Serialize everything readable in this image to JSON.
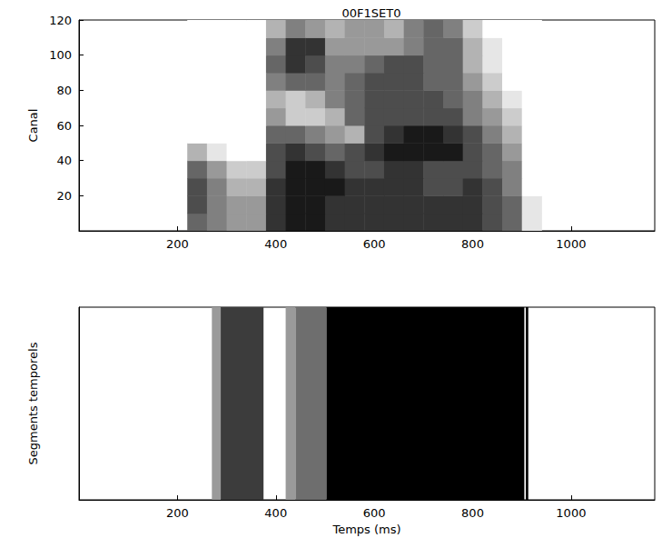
{
  "chart_data": [
    {
      "type": "heatmap",
      "title": "00F1SET0",
      "ylabel": "Canal",
      "xlim": [
        0,
        1170
      ],
      "xticks": [
        200,
        400,
        600,
        800,
        1000
      ],
      "ylim": [
        0,
        120
      ],
      "yticks": [
        20,
        40,
        60,
        80,
        100,
        120
      ],
      "x_edges": [
        220,
        260,
        300,
        340,
        380,
        420,
        460,
        500,
        540,
        580,
        620,
        660,
        700,
        740,
        780,
        820,
        860,
        900,
        940
      ],
      "y_edges": [
        0,
        10,
        20,
        30,
        40,
        50,
        60,
        70,
        80,
        90,
        100,
        110,
        120
      ],
      "zlim": [
        0,
        10
      ],
      "cells": [
        [
          6,
          5,
          4,
          4,
          8,
          9,
          9,
          8,
          8,
          8,
          8,
          8,
          8,
          8,
          8,
          7,
          6,
          1
        ],
        [
          7,
          5,
          4,
          4,
          8,
          9,
          9,
          8,
          8,
          8,
          8,
          8,
          8,
          8,
          8,
          7,
          6,
          1
        ],
        [
          7,
          5,
          3,
          3,
          8,
          9,
          9,
          9,
          8,
          8,
          8,
          8,
          7,
          7,
          8,
          7,
          5,
          0
        ],
        [
          6,
          4,
          2,
          2,
          7,
          9,
          9,
          8,
          7,
          7,
          8,
          8,
          7,
          7,
          7,
          6,
          5,
          0
        ],
        [
          3,
          1,
          0,
          0,
          7,
          8,
          7,
          6,
          7,
          8,
          9,
          9,
          9,
          9,
          7,
          6,
          4,
          0
        ],
        [
          0,
          0,
          0,
          0,
          6,
          6,
          5,
          4,
          3,
          7,
          8,
          9,
          9,
          8,
          7,
          5,
          3,
          0
        ],
        [
          0,
          0,
          0,
          0,
          4,
          2,
          2,
          3,
          6,
          7,
          7,
          7,
          7,
          7,
          5,
          4,
          2,
          0
        ],
        [
          0,
          0,
          0,
          0,
          3,
          2,
          3,
          5,
          6,
          7,
          7,
          7,
          7,
          6,
          5,
          3,
          1,
          0
        ],
        [
          0,
          0,
          0,
          0,
          5,
          6,
          6,
          5,
          6,
          7,
          7,
          7,
          6,
          6,
          4,
          2,
          0,
          0
        ],
        [
          0,
          0,
          0,
          0,
          6,
          8,
          7,
          5,
          5,
          6,
          7,
          7,
          6,
          6,
          3,
          1,
          0,
          0
        ],
        [
          0,
          0,
          0,
          0,
          5,
          8,
          8,
          4,
          4,
          4,
          4,
          5,
          6,
          6,
          3,
          1,
          0,
          0
        ],
        [
          0,
          0,
          0,
          0,
          3,
          5,
          4,
          3,
          4,
          4,
          3,
          5,
          6,
          5,
          2,
          0,
          0,
          0
        ]
      ]
    },
    {
      "type": "segments",
      "xlabel": "Temps (ms)",
      "ylabel": "Segments temporels",
      "xlim": [
        0,
        1170
      ],
      "xticks": [
        200,
        400,
        600,
        800,
        1000
      ],
      "tick_labels": "x",
      "starts": [
        270,
        288,
        420,
        440,
        503,
        908
      ],
      "ends": [
        288,
        375,
        440,
        503,
        905,
        913
      ],
      "colors": [
        "#9a9a9a",
        "#3c3c3c",
        "#9a9a9a",
        "#6e6e6e",
        "#000000",
        "#000000"
      ]
    }
  ]
}
